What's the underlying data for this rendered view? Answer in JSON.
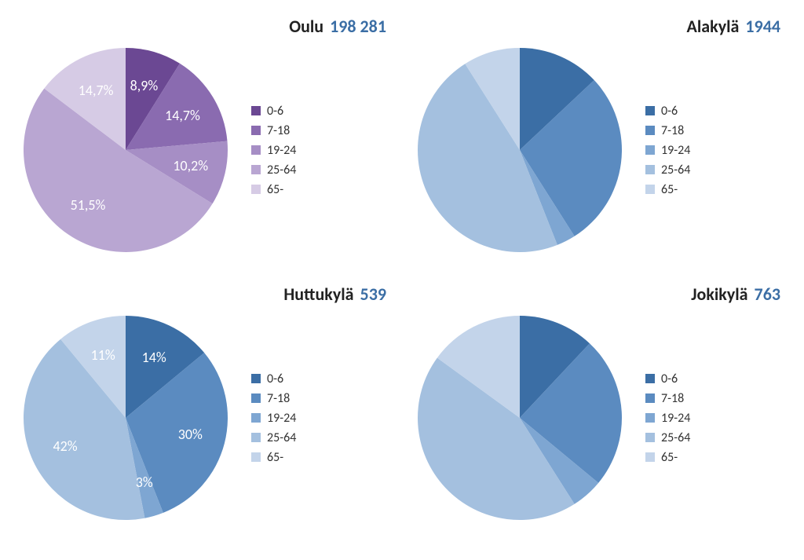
{
  "decimal_separator": ",",
  "legend_categories": [
    "0-6",
    "7-18",
    "19-24",
    "25-64",
    "65-"
  ],
  "pie_radius": 130,
  "label_radius": 85,
  "label_fontsize": 18,
  "title_fontsize": 22,
  "legend_fontsize": 16,
  "title_name_color": "#222222",
  "title_num_color": "#3b6ea5",
  "background_color": "#ffffff",
  "label_text_color": "#ffffff",
  "palettes": {
    "purple": [
      "#6b4893",
      "#8a6bb0",
      "#a68ec5",
      "#b9a6d2",
      "#d6cbe5"
    ],
    "blue": [
      "#3b6ea5",
      "#5b8bc0",
      "#7ea6d2",
      "#a4c0df",
      "#c3d4ea"
    ]
  },
  "charts": [
    {
      "name": "Oulu",
      "number": "198 281",
      "palette": "purple",
      "show_labels": true,
      "slices": [
        {
          "value": 8.9,
          "label": "8,9%"
        },
        {
          "value": 14.7,
          "label": "14,7%"
        },
        {
          "value": 10.2,
          "label": "10,2%"
        },
        {
          "value": 51.5,
          "label": "51,5%"
        },
        {
          "value": 14.7,
          "label": "14,7%"
        }
      ]
    },
    {
      "name": "Alakylä",
      "number": "1944",
      "palette": "blue",
      "show_labels": false,
      "slices": [
        {
          "value": 13
        },
        {
          "value": 28
        },
        {
          "value": 3
        },
        {
          "value": 47
        },
        {
          "value": 9
        }
      ]
    },
    {
      "name": "Huttukylä",
      "number": "539",
      "palette": "blue",
      "show_labels": true,
      "slices": [
        {
          "value": 14,
          "label": "14%"
        },
        {
          "value": 30,
          "label": "30%"
        },
        {
          "value": 3,
          "label": "3%"
        },
        {
          "value": 42,
          "label": "42%"
        },
        {
          "value": 11,
          "label": "11%"
        }
      ]
    },
    {
      "name": "Jokikylä",
      "number": "763",
      "palette": "blue",
      "show_labels": false,
      "slices": [
        {
          "value": 12
        },
        {
          "value": 24
        },
        {
          "value": 5
        },
        {
          "value": 44
        },
        {
          "value": 15
        }
      ]
    }
  ]
}
